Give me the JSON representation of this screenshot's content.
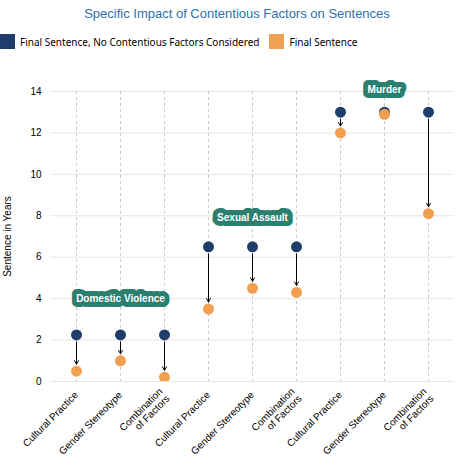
{
  "chart_data": {
    "type": "dumbbell",
    "title": "Specific Impact of Contentious Factors on Sentences",
    "ylabel": "Sentence in Years",
    "categories": [
      "Cultural Practice",
      "Gender Stereotype",
      "Combination\nof Factors",
      "Cultural Practice",
      "Gender Stereotype",
      "Combination\nof Factors",
      "Cultural Practice",
      "Gender Stereotype",
      "Combination\nof Factors"
    ],
    "series": [
      {
        "name": "Final Sentence, No Contentious Factors Considered",
        "color": "#1f3d6b",
        "values": [
          2.25,
          2.25,
          2.25,
          6.5,
          6.5,
          6.5,
          13.0,
          13.0,
          13.0
        ]
      },
      {
        "name": "Final Sentence",
        "color": "#f0a050",
        "values": [
          0.5,
          1.0,
          0.2,
          3.5,
          4.5,
          4.3,
          12.0,
          12.9,
          8.1
        ]
      }
    ],
    "annotations": [
      {
        "text": "Domestic Violence",
        "x": 1,
        "y": 3.6
      },
      {
        "text": "Sexual Assault",
        "x": 4,
        "y": 7.5
      },
      {
        "text": "Murder",
        "x": 7,
        "y": 13.7
      }
    ],
    "ylim": [
      0,
      14
    ],
    "yticks": [
      0,
      2,
      4,
      6,
      8,
      10,
      12,
      14
    ],
    "grid": true,
    "legend": "top-left"
  }
}
